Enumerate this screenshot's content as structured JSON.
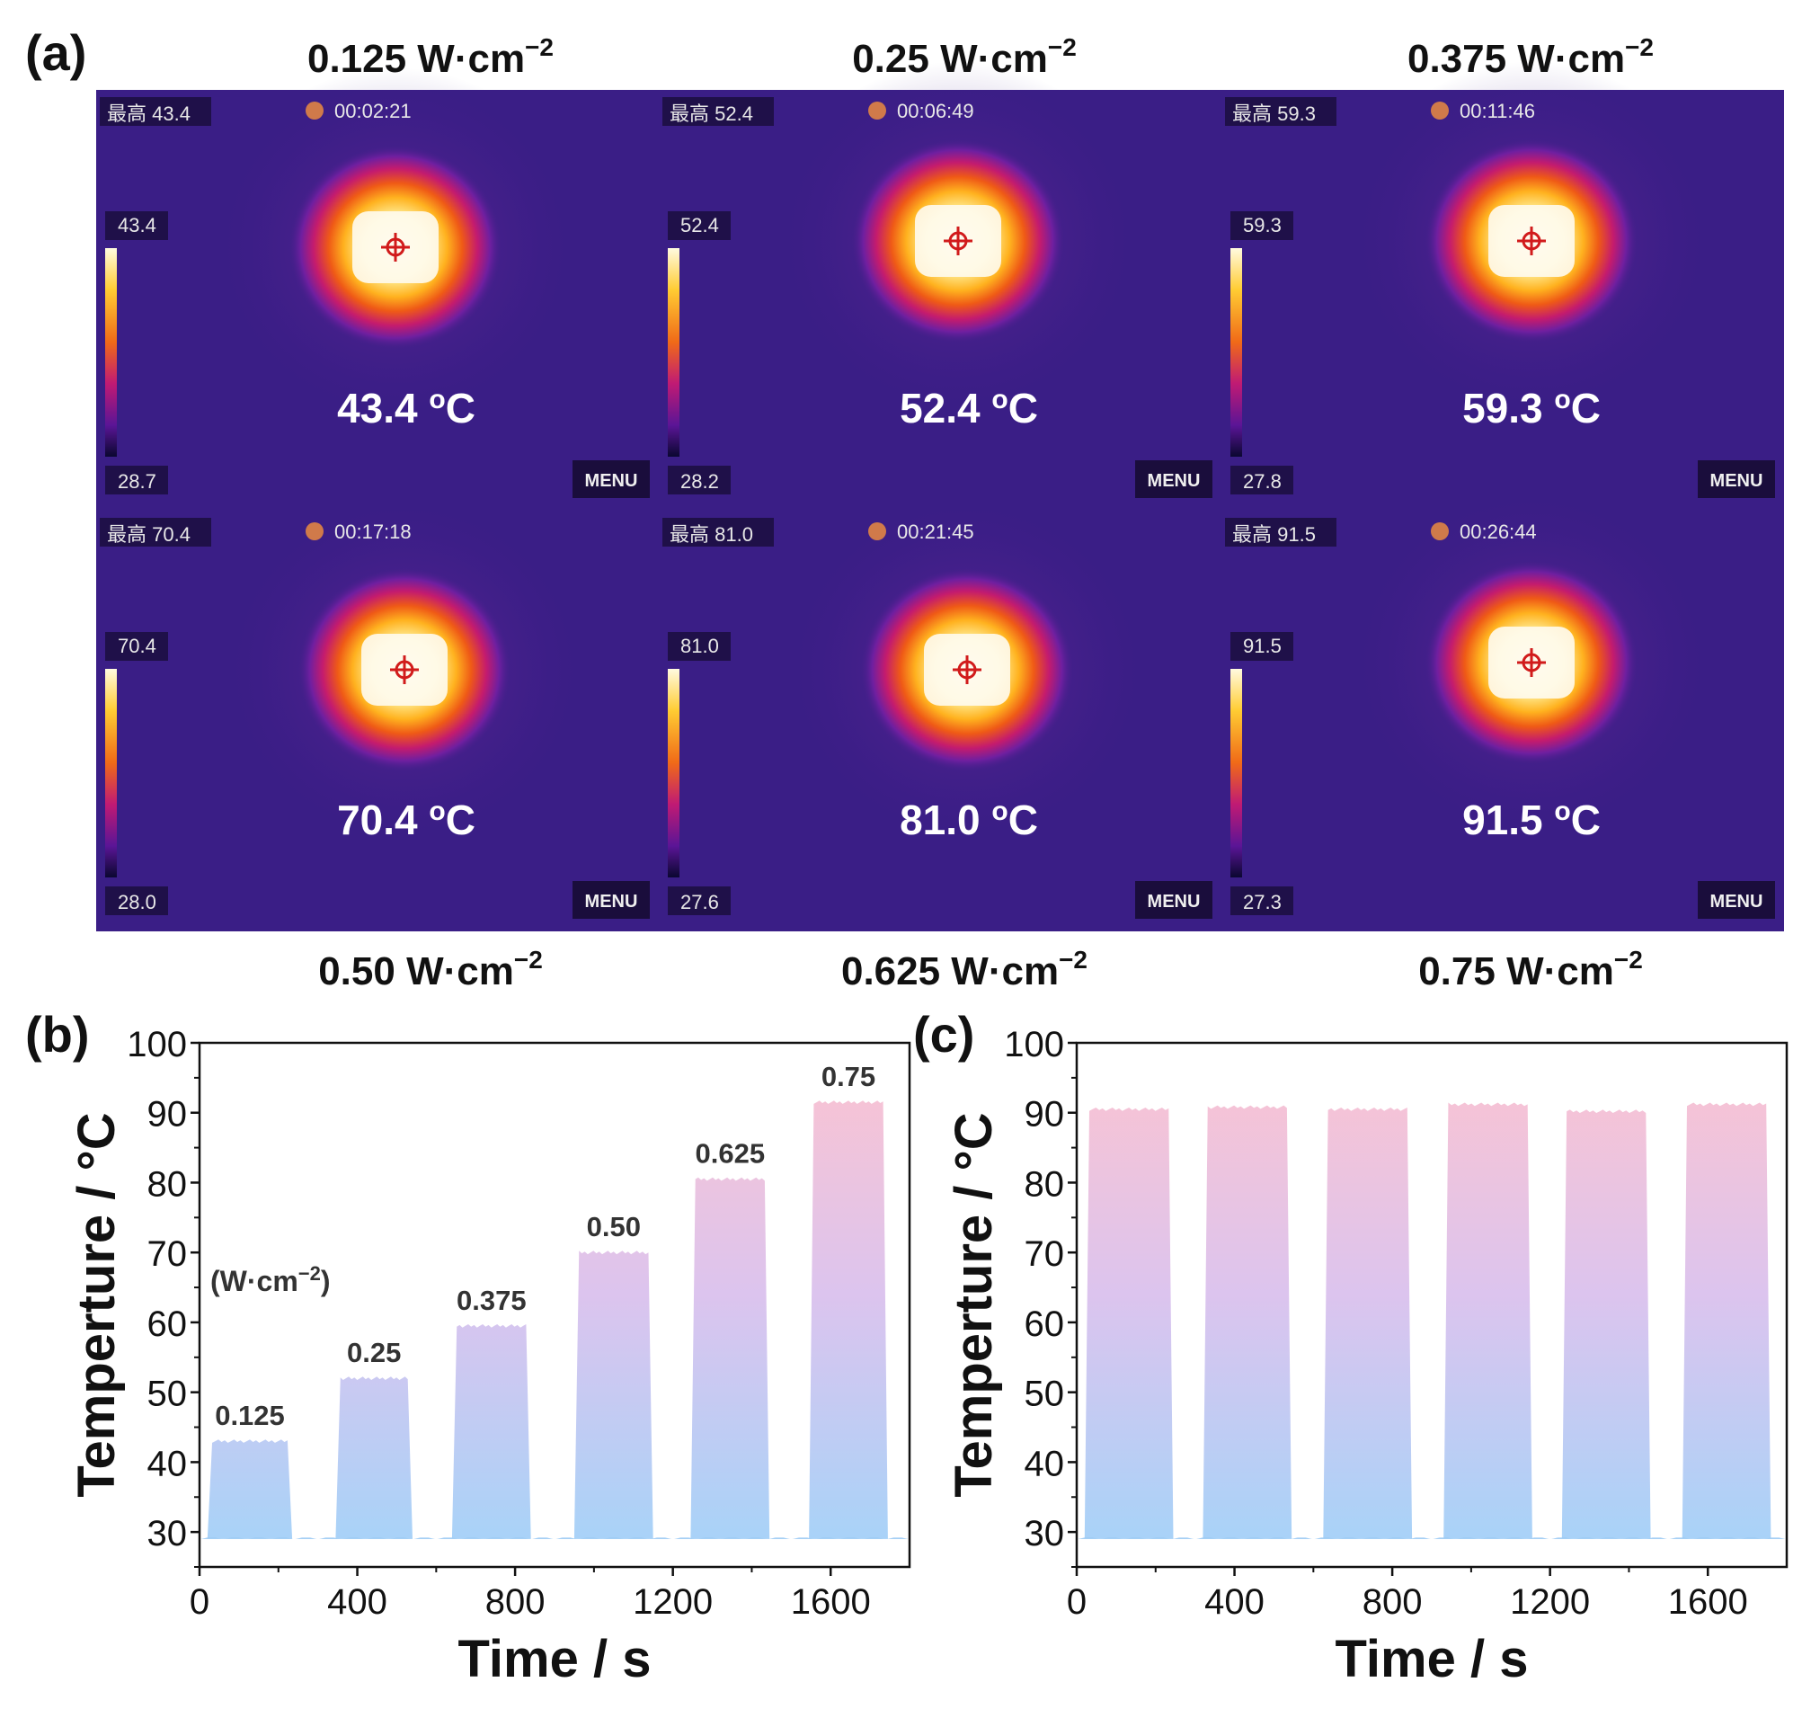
{
  "panel_labels": {
    "a": "(a)",
    "b": "(b)",
    "c": "(c)"
  },
  "thermal_panels": [
    {
      "density": "0.125",
      "max_label": "最高",
      "max": "43.4",
      "time": "00:02:21",
      "scale_top": "43.4",
      "scale_bottom": "28.7",
      "menu": "MENU",
      "temp": "43.4"
    },
    {
      "density": "0.25",
      "max_label": "最高",
      "max": "52.4",
      "time": "00:06:49",
      "scale_top": "52.4",
      "scale_bottom": "28.2",
      "menu": "MENU",
      "temp": "52.4"
    },
    {
      "density": "0.375",
      "max_label": "最高",
      "max": "59.3",
      "time": "00:11:46",
      "scale_top": "59.3",
      "scale_bottom": "27.8",
      "menu": "MENU",
      "temp": "59.3"
    },
    {
      "density": "0.50",
      "max_label": "最高",
      "max": "70.4",
      "time": "00:17:18",
      "scale_top": "70.4",
      "scale_bottom": "28.0",
      "menu": "MENU",
      "temp": "70.4"
    },
    {
      "density": "0.625",
      "max_label": "最高",
      "max": "81.0",
      "time": "00:21:45",
      "scale_top": "81.0",
      "scale_bottom": "27.6",
      "menu": "MENU",
      "temp": "81.0"
    },
    {
      "density": "0.75",
      "max_label": "最高",
      "max": "91.5",
      "time": "00:26:44",
      "scale_top": "91.5",
      "scale_bottom": "27.3",
      "menu": "MENU",
      "temp": "91.5"
    }
  ],
  "density_unit": "W·cm",
  "density_exp": "−2",
  "temp_unit": "C",
  "temp_prefix": "o",
  "colors": {
    "thermal_bg": "#3a1e86",
    "plot_gradient_top": "#fdc3cf",
    "plot_gradient_mid": "#dcc4ee",
    "plot_gradient_bottom": "#a7d3f8"
  },
  "chart_data": [
    {
      "type": "area",
      "panel": "(b)",
      "xlabel": "Time / s",
      "ylabel": "Temperture / °C",
      "xlim": [
        0,
        1800
      ],
      "ylim": [
        25,
        100
      ],
      "xticks": [
        0,
        400,
        800,
        1200,
        1600
      ],
      "yticks": [
        30,
        40,
        50,
        60,
        70,
        80,
        90,
        100
      ],
      "baseline": 29,
      "annotation_unit": "(W·cm",
      "annotation_unit_exp": "−2",
      "annotation_unit_close": ")",
      "pulses": [
        {
          "label": "0.125",
          "start": 20,
          "end": 235,
          "plateau": 43
        },
        {
          "label": "0.25",
          "start": 345,
          "end": 540,
          "plateau": 52
        },
        {
          "label": "0.375",
          "start": 640,
          "end": 840,
          "plateau": 59.5
        },
        {
          "label": "0.50",
          "start": 950,
          "end": 1150,
          "plateau": 70
        },
        {
          "label": "0.625",
          "start": 1245,
          "end": 1445,
          "plateau": 80.5
        },
        {
          "label": "0.75",
          "start": 1545,
          "end": 1745,
          "plateau": 91.5
        }
      ]
    },
    {
      "type": "area",
      "panel": "(c)",
      "xlabel": "Time / s",
      "ylabel": "Temperture / °C",
      "xlim": [
        0,
        1800
      ],
      "ylim": [
        25,
        100
      ],
      "xticks": [
        0,
        400,
        800,
        1200,
        1600
      ],
      "yticks": [
        30,
        40,
        50,
        60,
        70,
        80,
        90,
        100
      ],
      "baseline": 29,
      "pulses": [
        {
          "start": 20,
          "end": 245,
          "plateau": 90.5
        },
        {
          "start": 320,
          "end": 545,
          "plateau": 90.8
        },
        {
          "start": 625,
          "end": 850,
          "plateau": 90.5
        },
        {
          "start": 930,
          "end": 1155,
          "plateau": 91.2
        },
        {
          "start": 1230,
          "end": 1455,
          "plateau": 90.2
        },
        {
          "start": 1535,
          "end": 1760,
          "plateau": 91.2
        }
      ]
    }
  ]
}
